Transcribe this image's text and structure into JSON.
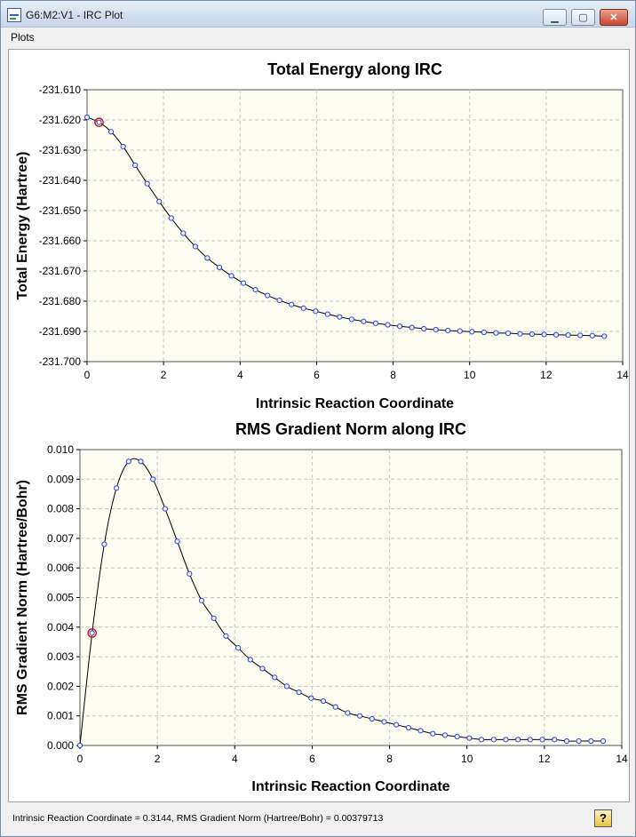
{
  "window": {
    "title": "G6:M2:V1 - IRC Plot",
    "buttons": {
      "minimize": "▁",
      "maximize": "▢",
      "close": "✕"
    }
  },
  "menu": {
    "items": [
      "Plots"
    ]
  },
  "colors": {
    "series_line": "#000000",
    "markers": "#3344cc",
    "selected_marker": "#cc1111",
    "plot_background": "#fcfcf0",
    "grid": "#c8c8c8"
  },
  "chart_data": [
    {
      "type": "line",
      "title": "Total Energy along IRC",
      "xlabel": "Intrinsic Reaction Coordinate",
      "ylabel": "Total Energy (Hartree)",
      "xlim": [
        0,
        14
      ],
      "ylim": [
        -231.7,
        -231.61
      ],
      "xticks": [
        "0",
        "2",
        "4",
        "6",
        "8",
        "10",
        "12",
        "14"
      ],
      "yticks": [
        "-231.610",
        "-231.620",
        "-231.630",
        "-231.640",
        "-231.650",
        "-231.660",
        "-231.670",
        "-231.680",
        "-231.690",
        "-231.700"
      ],
      "grid": true,
      "selected_index": 1,
      "x": [
        0,
        0.3144,
        0.6288,
        0.9432,
        1.2576,
        1.572,
        1.8864,
        2.2008,
        2.5152,
        2.8296,
        3.144,
        3.4584,
        3.7728,
        4.0872,
        4.4016,
        4.716,
        5.0304,
        5.3448,
        5.6592,
        5.9736,
        6.288,
        6.6024,
        6.9168,
        7.2312,
        7.5456,
        7.86,
        8.1744,
        8.4888,
        8.8032,
        9.1176,
        9.432,
        9.7464,
        10.0608,
        10.3752,
        10.6896,
        11.004,
        11.3184,
        11.6328,
        11.9472,
        12.2616,
        12.576,
        12.8904,
        13.2048,
        13.5192
      ],
      "y": [
        -231.6191,
        -231.6208,
        -231.6239,
        -231.6288,
        -231.635,
        -231.6411,
        -231.647,
        -231.6525,
        -231.6575,
        -231.6619,
        -231.6657,
        -231.6688,
        -231.6716,
        -231.674,
        -231.6762,
        -231.6781,
        -231.6797,
        -231.6811,
        -231.6823,
        -231.6833,
        -231.6843,
        -231.6852,
        -231.686,
        -231.6867,
        -231.6873,
        -231.6878,
        -231.6883,
        -231.6887,
        -231.6891,
        -231.6894,
        -231.6897,
        -231.6899,
        -231.6901,
        -231.6903,
        -231.6905,
        -231.6906,
        -231.6908,
        -231.6909,
        -231.691,
        -231.6911,
        -231.6912,
        -231.6913,
        -231.6914,
        -231.6916
      ]
    },
    {
      "type": "line",
      "title": "RMS Gradient Norm along IRC",
      "xlabel": "Intrinsic Reaction Coordinate",
      "ylabel": "RMS Gradient Norm (Hartree/Bohr)",
      "xlim": [
        0,
        14
      ],
      "ylim": [
        0,
        0.01
      ],
      "xticks": [
        "0",
        "2",
        "4",
        "6",
        "8",
        "10",
        "12",
        "14"
      ],
      "yticks": [
        "0.010",
        "0.009",
        "0.008",
        "0.007",
        "0.006",
        "0.005",
        "0.004",
        "0.003",
        "0.002",
        "0.001",
        "0.000"
      ],
      "grid": true,
      "selected_index": 1,
      "x": [
        0,
        0.3144,
        0.6288,
        0.9432,
        1.2576,
        1.572,
        1.8864,
        2.2008,
        2.5152,
        2.8296,
        3.144,
        3.4584,
        3.7728,
        4.0872,
        4.4016,
        4.716,
        5.0304,
        5.3448,
        5.6592,
        5.9736,
        6.288,
        6.6024,
        6.9168,
        7.2312,
        7.5456,
        7.86,
        8.1744,
        8.4888,
        8.8032,
        9.1176,
        9.432,
        9.7464,
        10.0608,
        10.3752,
        10.6896,
        11.004,
        11.3184,
        11.6328,
        11.9472,
        12.2616,
        12.576,
        12.8904,
        13.2048,
        13.5192
      ],
      "y": [
        0.0,
        0.0038,
        0.0068,
        0.0087,
        0.0096,
        0.0096,
        0.009,
        0.008,
        0.0069,
        0.0058,
        0.0049,
        0.0043,
        0.0037,
        0.0033,
        0.0029,
        0.0026,
        0.0023,
        0.002,
        0.0018,
        0.0016,
        0.0015,
        0.0013,
        0.0011,
        0.001,
        0.0009,
        0.0008,
        0.0007,
        0.0006,
        0.0005,
        0.0004,
        0.00035,
        0.0003,
        0.00025,
        0.0002,
        0.0002,
        0.0002,
        0.0002,
        0.0002,
        0.0002,
        0.0002,
        0.00015,
        0.00015,
        0.00015,
        0.00015
      ]
    }
  ],
  "status": {
    "text": "Intrinsic Reaction Coordinate = 0.3144, RMS Gradient Norm (Hartree/Bohr) = 0.00379713",
    "help_label": "?"
  }
}
